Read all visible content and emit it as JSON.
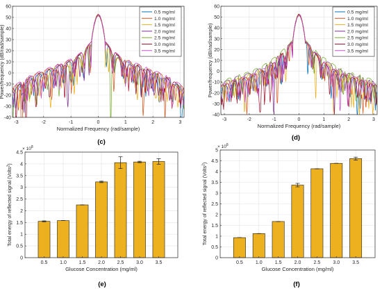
{
  "panels": [
    {
      "label": "(c)",
      "chart_data": {
        "type": "line",
        "xlabel": "Normalized Frequency (rad/sample)",
        "ylabel": "Power/frequency (dB/rad/sample)",
        "xlim": [
          -3.14,
          3.14
        ],
        "ylim": [
          -40,
          60
        ],
        "xticks": [
          -3,
          -2,
          -1,
          0,
          1,
          2,
          3
        ],
        "yticks": [
          -40,
          -30,
          -20,
          -10,
          0,
          10,
          20,
          30,
          40,
          50,
          60
        ],
        "grid": true,
        "legend_position": "top-right",
        "main_lobe_peak_db": 52,
        "envelope": {
          "x": [
            0.0,
            0.25,
            0.5,
            0.8,
            1.0,
            1.5,
            2.0,
            2.5,
            3.14
          ],
          "y": [
            52,
            28,
            20,
            13,
            10,
            5,
            0,
            -5,
            -15
          ]
        },
        "series": [
          {
            "name": "0.5 mg/ml",
            "color": "#0072BD"
          },
          {
            "name": "1.0 mg/ml",
            "color": "#D95319"
          },
          {
            "name": "1.5 mg/ml",
            "color": "#EDB120"
          },
          {
            "name": "2.0 mg/ml",
            "color": "#7E2F8E"
          },
          {
            "name": "2.5 mg/ml",
            "color": "#77AC30"
          },
          {
            "name": "3.0 mg/ml",
            "color": "#A2142F"
          },
          {
            "name": "3.5 mg/ml",
            "color": "#C44DC9"
          }
        ]
      }
    },
    {
      "label": "(d)",
      "chart_data": {
        "type": "line",
        "xlabel": "Normalized Frequency (rad/sample)",
        "ylabel": "Power/frequency (dB/rad/sample)",
        "xlim": [
          -3.14,
          3.14
        ],
        "ylim": [
          -40,
          60
        ],
        "xticks": [
          -3,
          -2,
          -1,
          0,
          1,
          2,
          3
        ],
        "yticks": [
          -40,
          -30,
          -20,
          -10,
          0,
          10,
          20,
          30,
          40,
          50,
          60
        ],
        "grid": true,
        "legend_position": "top-right",
        "main_lobe_peak_db": 52,
        "envelope": {
          "x": [
            0.0,
            0.25,
            0.5,
            0.8,
            1.0,
            1.5,
            2.0,
            2.5,
            3.14
          ],
          "y": [
            52,
            28,
            22,
            14,
            10,
            2,
            -3,
            -6,
            -12
          ]
        },
        "series": [
          {
            "name": "0.5 mg/ml",
            "color": "#0072BD"
          },
          {
            "name": "1.0 mg/ml",
            "color": "#D95319"
          },
          {
            "name": "1.5 mg/ml",
            "color": "#EDB120"
          },
          {
            "name": "2.0 mg/ml",
            "color": "#7E2F8E"
          },
          {
            "name": "2.5 mg/ml",
            "color": "#77AC30"
          },
          {
            "name": "3.0 mg/ml",
            "color": "#A2142F"
          },
          {
            "name": "3.5 mg/ml",
            "color": "#C44DC9"
          }
        ]
      }
    },
    {
      "label": "(e)",
      "chart_data": {
        "type": "bar",
        "categories": [
          "0.5",
          "1.0",
          "1.5",
          "2.0",
          "2.5",
          "3.0",
          "3.5"
        ],
        "values": [
          1.55,
          1.58,
          2.25,
          3.23,
          4.05,
          4.08,
          4.1
        ],
        "errors": [
          0.02,
          0.0,
          0.0,
          0.03,
          0.25,
          0.03,
          0.12
        ],
        "exponent_label": "× 10",
        "exponent_power": "8",
        "xlabel": "Glucose Concentration (mg/ml)",
        "ylabel_main": "Total energy of reflected signal (Volts",
        "ylabel_sup": "2",
        "ylabel_end": ")",
        "ylim": [
          0,
          4.5
        ],
        "yticks": [
          0,
          0.5,
          1,
          1.5,
          2,
          2.5,
          3,
          3.5,
          4,
          4.5
        ],
        "grid": true,
        "bar_color": "#EDB120"
      }
    },
    {
      "label": "(f)",
      "chart_data": {
        "type": "bar",
        "categories": [
          "0.5",
          "1.0",
          "1.5",
          "2.0",
          "2.5",
          "3.0",
          "3.5"
        ],
        "values": [
          0.93,
          1.12,
          1.68,
          3.37,
          4.13,
          4.38,
          4.6
        ],
        "errors": [
          0.0,
          0.0,
          0.0,
          0.08,
          0.0,
          0.0,
          0.07
        ],
        "exponent_label": "× 10",
        "exponent_power": "8",
        "xlabel": "Glucose Concentration (mg/ml)",
        "ylabel_main": "Total energy of reflected signal (Volts",
        "ylabel_sup": "2",
        "ylabel_end": ")",
        "ylim": [
          0,
          5
        ],
        "yticks": [
          0,
          0.5,
          1,
          1.5,
          2,
          2.5,
          3,
          3.5,
          4,
          4.5,
          5
        ],
        "grid": true,
        "bar_color": "#EDB120"
      }
    }
  ]
}
